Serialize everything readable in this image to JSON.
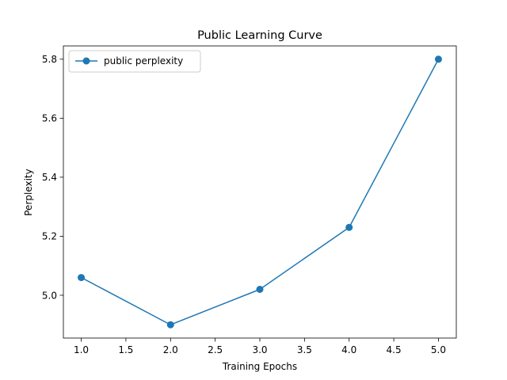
{
  "chart_data": {
    "type": "line",
    "title": "Public Learning Curve",
    "xlabel": "Training Epochs",
    "ylabel": "Perplexity",
    "x": [
      1.0,
      2.0,
      3.0,
      4.0,
      5.0
    ],
    "series": [
      {
        "name": "public perplexity",
        "values": [
          5.06,
          4.9,
          5.02,
          5.23,
          5.8
        ],
        "color": "#1f77b4",
        "marker": "circle"
      }
    ],
    "xlim": [
      0.8,
      5.2
    ],
    "ylim": [
      4.855,
      5.845
    ],
    "xticks": [
      "1.0",
      "1.5",
      "2.0",
      "2.5",
      "3.0",
      "3.5",
      "4.0",
      "4.5",
      "5.0"
    ],
    "yticks": [
      "5.0",
      "5.2",
      "5.4",
      "5.6",
      "5.8"
    ],
    "grid": false,
    "legend_position": "upper-left"
  }
}
